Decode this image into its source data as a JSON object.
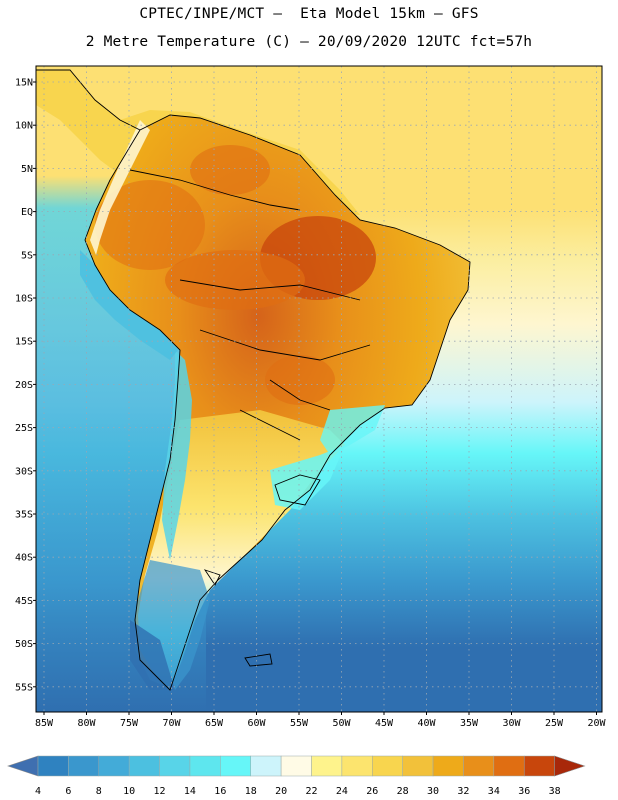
{
  "header": {
    "line1": "CPTEC/INPE/MCT –  Eta Model 15km – GFS",
    "line2": "2 Metre Temperature (C) – 20/09/2020 12UTC fct=57h"
  },
  "map": {
    "lat_labels": [
      "15N",
      "10N",
      "5N",
      "EQ",
      "5S",
      "10S",
      "15S",
      "20S",
      "25S",
      "30S",
      "35S",
      "40S",
      "45S",
      "50S",
      "55S"
    ],
    "lon_labels": [
      "85W",
      "80W",
      "75W",
      "70W",
      "65W",
      "60W",
      "55W",
      "50W",
      "45W",
      "40W",
      "35W",
      "30W",
      "25W",
      "20W"
    ]
  },
  "colorbar": {
    "ticks": [
      "4",
      "6",
      "8",
      "10",
      "12",
      "14",
      "16",
      "18",
      "20",
      "22",
      "24",
      "26",
      "28",
      "30",
      "32",
      "34",
      "36",
      "38"
    ],
    "colors": [
      "#3f6fb0",
      "#2f82c0",
      "#3a97cd",
      "#43abd8",
      "#4cc0e0",
      "#58d4e8",
      "#5ee6ee",
      "#66f6f8",
      "#cdf4fb",
      "#fffbe6",
      "#fef38c",
      "#fce46e",
      "#f8d54e",
      "#f2c13a",
      "#eeaa1a",
      "#e88f1a",
      "#e06e12",
      "#c8460c",
      "#a8280a"
    ]
  }
}
